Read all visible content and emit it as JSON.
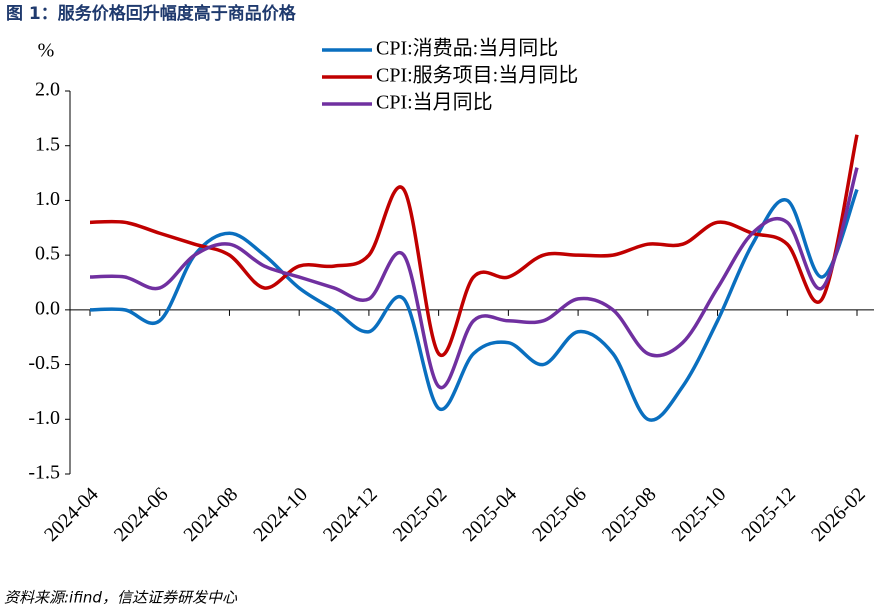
{
  "chart_data": {
    "type": "line",
    "title": "图 1：服务价格回升幅度高于商品价格",
    "y_unit": "%",
    "source": "资料来源:ifind，信达证券研发中心",
    "categories": [
      "2024-04",
      null,
      "2024-06",
      null,
      "2024-08",
      null,
      "2024-10",
      null,
      "2024-12",
      null,
      "2025-02",
      null,
      "2025-04",
      null,
      "2025-06",
      null,
      "2025-08",
      null,
      "2025-10",
      null,
      "2025-12",
      null,
      "2026-02"
    ],
    "series": [
      {
        "name": "CPI:消费品:当月同比",
        "color": "#0a6fbf",
        "values": [
          0.0,
          0.0,
          -0.1,
          0.5,
          0.7,
          0.5,
          0.2,
          0.0,
          -0.2,
          0.1,
          -0.9,
          -0.4,
          -0.3,
          -0.5,
          -0.2,
          -0.4,
          -1.0,
          -0.7,
          -0.1,
          0.6,
          1.0,
          0.3,
          1.1
        ]
      },
      {
        "name": "CPI:服务项目:当月同比",
        "color": "#c00000",
        "values": [
          0.8,
          0.8,
          0.7,
          0.6,
          0.5,
          0.2,
          0.4,
          0.4,
          0.5,
          1.1,
          -0.4,
          0.3,
          0.3,
          0.5,
          0.5,
          0.5,
          0.6,
          0.6,
          0.8,
          0.7,
          0.6,
          0.1,
          1.6
        ]
      },
      {
        "name": "CPI:当月同比",
        "color": "#7030a0",
        "values": [
          0.3,
          0.3,
          0.2,
          0.5,
          0.6,
          0.4,
          0.3,
          0.2,
          0.1,
          0.5,
          -0.7,
          -0.1,
          -0.1,
          -0.1,
          0.1,
          0.0,
          -0.4,
          -0.3,
          0.2,
          0.7,
          0.8,
          0.2,
          1.3
        ]
      }
    ],
    "ylim": [
      -1.5,
      2.0
    ],
    "yticks": [
      {
        "value": 2.0,
        "label": "2.0"
      },
      {
        "value": 1.5,
        "label": "1.5"
      },
      {
        "value": 1.0,
        "label": "1.0"
      },
      {
        "value": 0.5,
        "label": "0.5"
      },
      {
        "value": 0,
        "label": "0.0"
      },
      {
        "value": -0.5,
        "label": "-0.5"
      },
      {
        "value": -1.0,
        "label": "-1.0"
      },
      {
        "value": -1.5,
        "label": "-1.5"
      }
    ],
    "grid": false
  }
}
